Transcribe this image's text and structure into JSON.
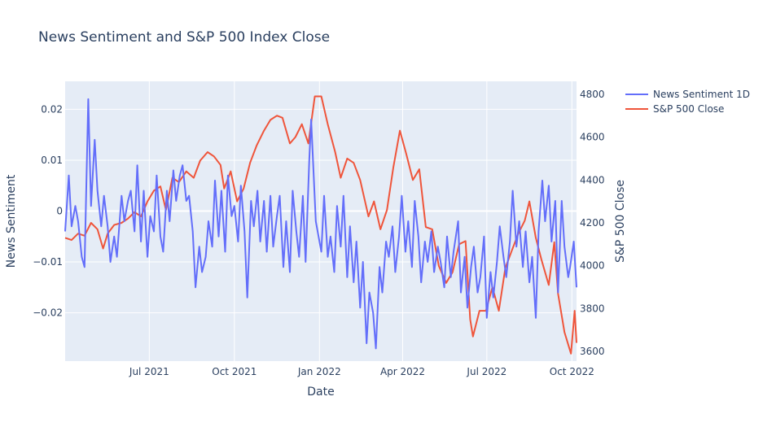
{
  "chart_data": {
    "type": "line",
    "title": "News Sentiment and S&P 500 Index Close",
    "xlabel": "Date",
    "ylabel": "News Sentiment",
    "y2label": "S&P 500 Close",
    "x_ticks": [
      "Jul 2021",
      "Oct 2021",
      "Jan 2022",
      "Apr 2022",
      "Jul 2022",
      "Oct 2022"
    ],
    "xlim": [
      "2021-04-01",
      "2022-10-06"
    ],
    "y_ticks": [
      "0.02",
      "0.01",
      "0",
      "−0.01",
      "−0.02"
    ],
    "y_tick_values": [
      0.02,
      0.01,
      0,
      -0.01,
      -0.02
    ],
    "ylim": [
      -0.0295,
      0.0255
    ],
    "y2_ticks": [
      "4800",
      "4600",
      "4400",
      "4200",
      "4000",
      "3800",
      "3600"
    ],
    "y2_tick_values": [
      4800,
      4600,
      4400,
      4200,
      4000,
      3800,
      3600
    ],
    "y2lim": [
      3555,
      4860
    ],
    "grid": true,
    "legend_position": "top-right",
    "series": [
      {
        "name": "News Sentiment 1D",
        "color": "#636efa",
        "axis": "y",
        "points": [
          [
            "2021-04-01",
            -0.004
          ],
          [
            "2021-04-05",
            0.007
          ],
          [
            "2021-04-08",
            -0.003
          ],
          [
            "2021-04-12",
            0.001
          ],
          [
            "2021-04-15",
            -0.002
          ],
          [
            "2021-04-19",
            -0.009
          ],
          [
            "2021-04-22",
            -0.011
          ],
          [
            "2021-04-26",
            0.022
          ],
          [
            "2021-04-29",
            0.001
          ],
          [
            "2021-05-03",
            0.014
          ],
          [
            "2021-05-06",
            0.004
          ],
          [
            "2021-05-10",
            -0.003
          ],
          [
            "2021-05-13",
            0.003
          ],
          [
            "2021-05-17",
            -0.003
          ],
          [
            "2021-05-20",
            -0.01
          ],
          [
            "2021-05-24",
            -0.005
          ],
          [
            "2021-05-27",
            -0.009
          ],
          [
            "2021-06-01",
            0.003
          ],
          [
            "2021-06-04",
            -0.002
          ],
          [
            "2021-06-08",
            0.002
          ],
          [
            "2021-06-11",
            0.004
          ],
          [
            "2021-06-15",
            -0.004
          ],
          [
            "2021-06-18",
            0.009
          ],
          [
            "2021-06-22",
            -0.006
          ],
          [
            "2021-06-25",
            0.004
          ],
          [
            "2021-06-29",
            -0.009
          ],
          [
            "2021-07-02",
            -0.001
          ],
          [
            "2021-07-06",
            -0.004
          ],
          [
            "2021-07-09",
            0.007
          ],
          [
            "2021-07-13",
            -0.005
          ],
          [
            "2021-07-16",
            -0.008
          ],
          [
            "2021-07-20",
            0.004
          ],
          [
            "2021-07-23",
            -0.002
          ],
          [
            "2021-07-27",
            0.008
          ],
          [
            "2021-07-30",
            0.002
          ],
          [
            "2021-08-03",
            0.007
          ],
          [
            "2021-08-06",
            0.009
          ],
          [
            "2021-08-10",
            0.002
          ],
          [
            "2021-08-13",
            0.003
          ],
          [
            "2021-08-17",
            -0.004
          ],
          [
            "2021-08-20",
            -0.015
          ],
          [
            "2021-08-24",
            -0.007
          ],
          [
            "2021-08-27",
            -0.012
          ],
          [
            "2021-08-31",
            -0.009
          ],
          [
            "2021-09-03",
            -0.002
          ],
          [
            "2021-09-07",
            -0.007
          ],
          [
            "2021-09-10",
            0.006
          ],
          [
            "2021-09-14",
            -0.005
          ],
          [
            "2021-09-17",
            0.004
          ],
          [
            "2021-09-21",
            -0.008
          ],
          [
            "2021-09-24",
            0.007
          ],
          [
            "2021-09-28",
            -0.001
          ],
          [
            "2021-10-01",
            0.001
          ],
          [
            "2021-10-05",
            -0.006
          ],
          [
            "2021-10-08",
            0.005
          ],
          [
            "2021-10-12",
            -0.004
          ],
          [
            "2021-10-15",
            -0.017
          ],
          [
            "2021-10-19",
            0.002
          ],
          [
            "2021-10-22",
            -0.003
          ],
          [
            "2021-10-26",
            0.004
          ],
          [
            "2021-10-29",
            -0.006
          ],
          [
            "2021-11-02",
            0.002
          ],
          [
            "2021-11-05",
            -0.008
          ],
          [
            "2021-11-09",
            0.003
          ],
          [
            "2021-11-12",
            -0.007
          ],
          [
            "2021-11-16",
            -0.001
          ],
          [
            "2021-11-19",
            0.003
          ],
          [
            "2021-11-23",
            -0.011
          ],
          [
            "2021-11-26",
            -0.002
          ],
          [
            "2021-11-30",
            -0.012
          ],
          [
            "2021-12-03",
            0.004
          ],
          [
            "2021-12-07",
            -0.004
          ],
          [
            "2021-12-10",
            -0.009
          ],
          [
            "2021-12-14",
            0.003
          ],
          [
            "2021-12-17",
            -0.01
          ],
          [
            "2021-12-21",
            0.01
          ],
          [
            "2021-12-23",
            0.018
          ],
          [
            "2021-12-28",
            -0.002
          ],
          [
            "2022-01-03",
            -0.008
          ],
          [
            "2022-01-06",
            0.003
          ],
          [
            "2022-01-10",
            -0.009
          ],
          [
            "2022-01-13",
            -0.005
          ],
          [
            "2022-01-17",
            -0.012
          ],
          [
            "2022-01-20",
            0.001
          ],
          [
            "2022-01-24",
            -0.007
          ],
          [
            "2022-01-27",
            0.003
          ],
          [
            "2022-01-31",
            -0.013
          ],
          [
            "2022-02-03",
            -0.003
          ],
          [
            "2022-02-07",
            -0.014
          ],
          [
            "2022-02-10",
            -0.006
          ],
          [
            "2022-02-14",
            -0.019
          ],
          [
            "2022-02-17",
            -0.01
          ],
          [
            "2022-02-21",
            -0.026
          ],
          [
            "2022-02-24",
            -0.016
          ],
          [
            "2022-02-28",
            -0.02
          ],
          [
            "2022-03-03",
            -0.027
          ],
          [
            "2022-03-07",
            -0.011
          ],
          [
            "2022-03-10",
            -0.016
          ],
          [
            "2022-03-14",
            -0.006
          ],
          [
            "2022-03-17",
            -0.009
          ],
          [
            "2022-03-21",
            -0.003
          ],
          [
            "2022-03-24",
            -0.012
          ],
          [
            "2022-03-28",
            -0.005
          ],
          [
            "2022-03-31",
            0.003
          ],
          [
            "2022-04-04",
            -0.008
          ],
          [
            "2022-04-07",
            -0.002
          ],
          [
            "2022-04-11",
            -0.011
          ],
          [
            "2022-04-14",
            0.002
          ],
          [
            "2022-04-18",
            -0.005
          ],
          [
            "2022-04-21",
            -0.014
          ],
          [
            "2022-04-25",
            -0.006
          ],
          [
            "2022-04-28",
            -0.01
          ],
          [
            "2022-05-02",
            -0.004
          ],
          [
            "2022-05-05",
            -0.012
          ],
          [
            "2022-05-09",
            -0.007
          ],
          [
            "2022-05-12",
            -0.01
          ],
          [
            "2022-05-16",
            -0.015
          ],
          [
            "2022-05-19",
            -0.005
          ],
          [
            "2022-05-23",
            -0.013
          ],
          [
            "2022-05-26",
            -0.008
          ],
          [
            "2022-05-31",
            -0.002
          ],
          [
            "2022-06-03",
            -0.016
          ],
          [
            "2022-06-07",
            -0.009
          ],
          [
            "2022-06-10",
            -0.019
          ],
          [
            "2022-06-14",
            -0.011
          ],
          [
            "2022-06-17",
            -0.007
          ],
          [
            "2022-06-21",
            -0.016
          ],
          [
            "2022-06-24",
            -0.013
          ],
          [
            "2022-06-28",
            -0.005
          ],
          [
            "2022-07-01",
            -0.021
          ],
          [
            "2022-07-05",
            -0.012
          ],
          [
            "2022-07-08",
            -0.017
          ],
          [
            "2022-07-12",
            -0.01
          ],
          [
            "2022-07-15",
            -0.003
          ],
          [
            "2022-07-19",
            -0.009
          ],
          [
            "2022-07-22",
            -0.013
          ],
          [
            "2022-07-26",
            -0.006
          ],
          [
            "2022-07-29",
            0.004
          ],
          [
            "2022-08-02",
            -0.007
          ],
          [
            "2022-08-05",
            -0.002
          ],
          [
            "2022-08-09",
            -0.011
          ],
          [
            "2022-08-12",
            -0.004
          ],
          [
            "2022-08-16",
            -0.014
          ],
          [
            "2022-08-19",
            -0.009
          ],
          [
            "2022-08-23",
            -0.021
          ],
          [
            "2022-08-26",
            -0.004
          ],
          [
            "2022-08-30",
            0.006
          ],
          [
            "2022-09-02",
            -0.002
          ],
          [
            "2022-09-06",
            0.005
          ],
          [
            "2022-09-09",
            -0.006
          ],
          [
            "2022-09-13",
            0.002
          ],
          [
            "2022-09-16",
            -0.016
          ],
          [
            "2022-09-20",
            0.002
          ],
          [
            "2022-09-23",
            -0.007
          ],
          [
            "2022-09-27",
            -0.013
          ],
          [
            "2022-09-29",
            -0.011
          ],
          [
            "2022-10-03",
            -0.006
          ],
          [
            "2022-10-06",
            -0.015
          ]
        ]
      },
      {
        "name": "S&P 500 Close",
        "color": "#ef553b",
        "axis": "y2",
        "points": [
          [
            "2021-04-01",
            4130
          ],
          [
            "2021-04-08",
            4120
          ],
          [
            "2021-04-15",
            4150
          ],
          [
            "2021-04-22",
            4140
          ],
          [
            "2021-04-29",
            4200
          ],
          [
            "2021-05-06",
            4170
          ],
          [
            "2021-05-12",
            4080
          ],
          [
            "2021-05-17",
            4150
          ],
          [
            "2021-05-24",
            4190
          ],
          [
            "2021-06-01",
            4200
          ],
          [
            "2021-06-08",
            4220
          ],
          [
            "2021-06-15",
            4250
          ],
          [
            "2021-06-22",
            4230
          ],
          [
            "2021-06-29",
            4300
          ],
          [
            "2021-07-06",
            4350
          ],
          [
            "2021-07-13",
            4370
          ],
          [
            "2021-07-19",
            4260
          ],
          [
            "2021-07-26",
            4410
          ],
          [
            "2021-08-02",
            4390
          ],
          [
            "2021-08-10",
            4440
          ],
          [
            "2021-08-18",
            4410
          ],
          [
            "2021-08-25",
            4490
          ],
          [
            "2021-09-02",
            4530
          ],
          [
            "2021-09-09",
            4510
          ],
          [
            "2021-09-16",
            4470
          ],
          [
            "2021-09-20",
            4360
          ],
          [
            "2021-09-27",
            4440
          ],
          [
            "2021-10-04",
            4300
          ],
          [
            "2021-10-11",
            4360
          ],
          [
            "2021-10-18",
            4480
          ],
          [
            "2021-10-25",
            4560
          ],
          [
            "2021-11-02",
            4630
          ],
          [
            "2021-11-09",
            4680
          ],
          [
            "2021-11-16",
            4700
          ],
          [
            "2021-11-22",
            4690
          ],
          [
            "2021-11-30",
            4570
          ],
          [
            "2021-12-06",
            4600
          ],
          [
            "2021-12-13",
            4660
          ],
          [
            "2021-12-20",
            4570
          ],
          [
            "2021-12-27",
            4790
          ],
          [
            "2022-01-03",
            4790
          ],
          [
            "2022-01-10",
            4660
          ],
          [
            "2022-01-18",
            4530
          ],
          [
            "2022-01-24",
            4410
          ],
          [
            "2022-01-31",
            4500
          ],
          [
            "2022-02-07",
            4480
          ],
          [
            "2022-02-14",
            4400
          ],
          [
            "2022-02-23",
            4230
          ],
          [
            "2022-03-01",
            4300
          ],
          [
            "2022-03-08",
            4170
          ],
          [
            "2022-03-15",
            4260
          ],
          [
            "2022-03-22",
            4460
          ],
          [
            "2022-03-29",
            4630
          ],
          [
            "2022-04-05",
            4520
          ],
          [
            "2022-04-12",
            4400
          ],
          [
            "2022-04-19",
            4450
          ],
          [
            "2022-04-26",
            4180
          ],
          [
            "2022-05-03",
            4170
          ],
          [
            "2022-05-10",
            4000
          ],
          [
            "2022-05-18",
            3920
          ],
          [
            "2022-05-25",
            3970
          ],
          [
            "2022-06-01",
            4100
          ],
          [
            "2022-06-08",
            4115
          ],
          [
            "2022-06-13",
            3750
          ],
          [
            "2022-06-16",
            3670
          ],
          [
            "2022-06-23",
            3790
          ],
          [
            "2022-06-30",
            3790
          ],
          [
            "2022-07-07",
            3900
          ],
          [
            "2022-07-14",
            3790
          ],
          [
            "2022-07-21",
            3990
          ],
          [
            "2022-07-28",
            4070
          ],
          [
            "2022-08-04",
            4150
          ],
          [
            "2022-08-11",
            4210
          ],
          [
            "2022-08-16",
            4300
          ],
          [
            "2022-08-23",
            4130
          ],
          [
            "2022-08-29",
            4030
          ],
          [
            "2022-09-06",
            3910
          ],
          [
            "2022-09-12",
            4110
          ],
          [
            "2022-09-16",
            3870
          ],
          [
            "2022-09-23",
            3690
          ],
          [
            "2022-09-30",
            3590
          ],
          [
            "2022-10-04",
            3790
          ],
          [
            "2022-10-06",
            3640
          ]
        ]
      }
    ]
  }
}
